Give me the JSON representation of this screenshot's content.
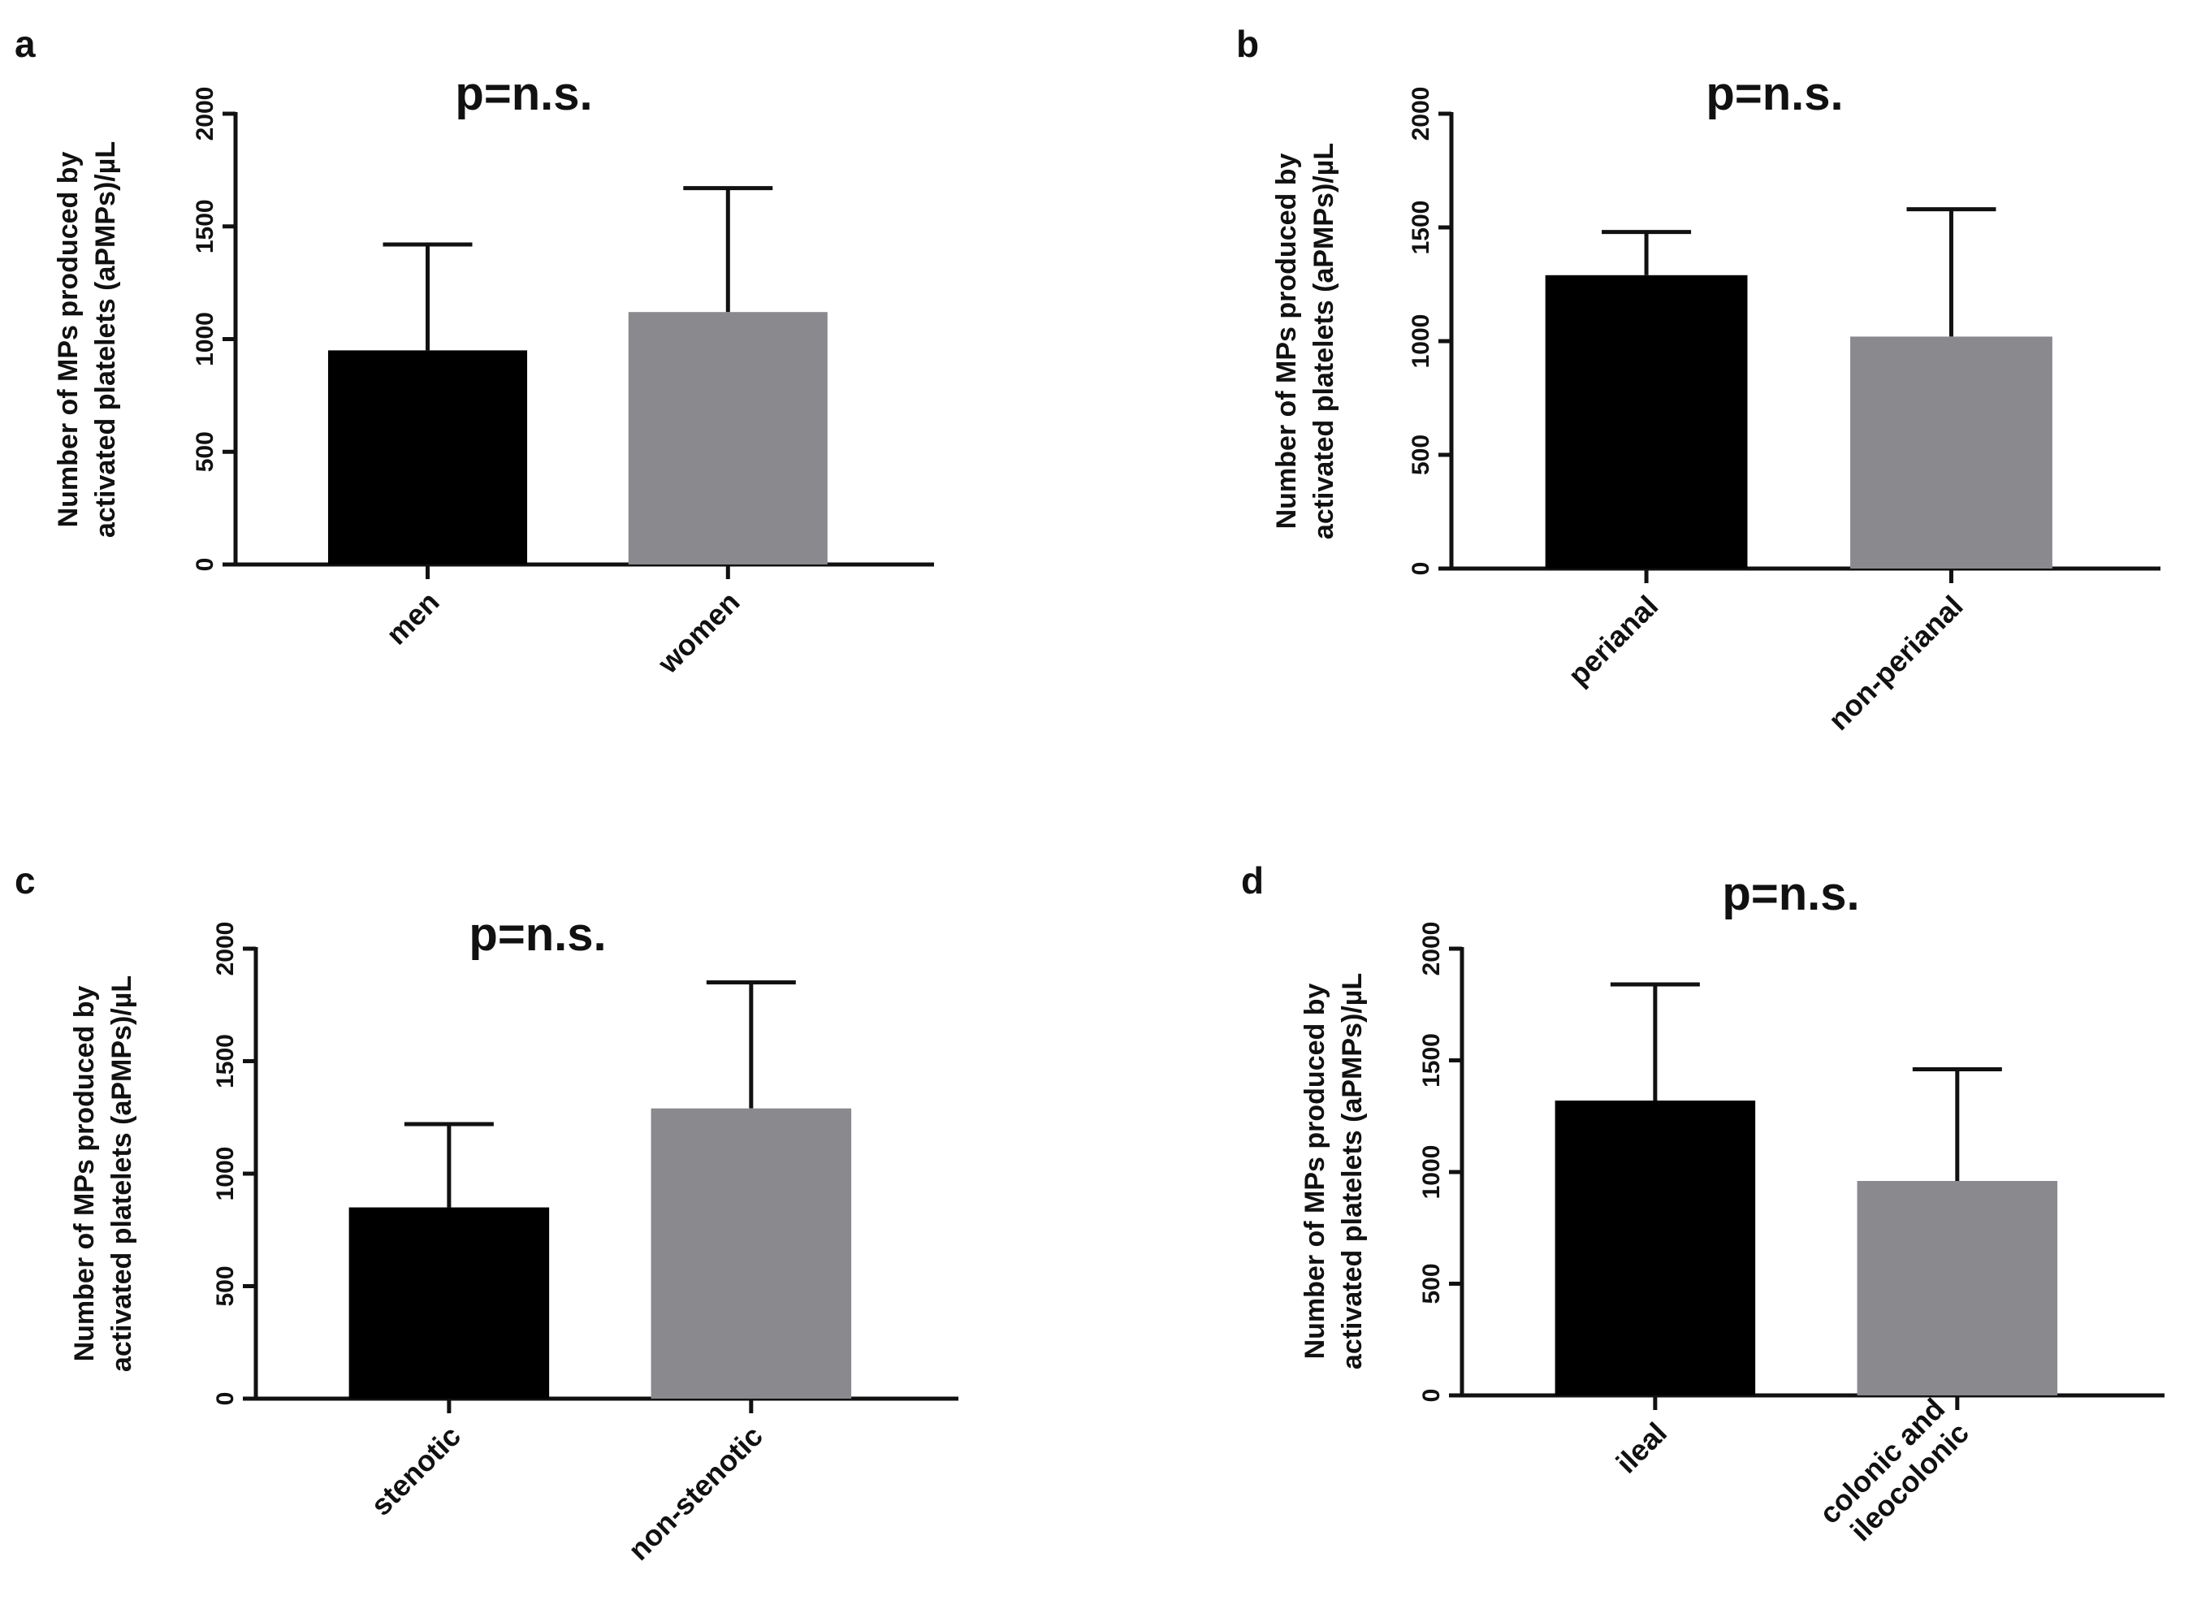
{
  "colors": {
    "series1": "#000000",
    "series2": "#8a8a8e",
    "axis": "#111111"
  },
  "chart_data": [
    {
      "type": "bar",
      "panel": "a",
      "title": "p=n.s.",
      "ylabel": [
        "Number of MPs produced by",
        "activated platelets (aPMPs)/µL"
      ],
      "ylim": [
        0,
        2000
      ],
      "yticks": [
        0,
        500,
        1000,
        1500,
        2000
      ],
      "categories": [
        [
          "men"
        ],
        [
          "women"
        ]
      ],
      "values": [
        950,
        1120
      ],
      "errors_upper": [
        1420,
        1670
      ]
    },
    {
      "type": "bar",
      "panel": "b",
      "title": "p=n.s.",
      "ylabel": [
        "Number of MPs produced by",
        "activated platelets (aPMPs)/µL"
      ],
      "ylim": [
        0,
        2000
      ],
      "yticks": [
        0,
        500,
        1000,
        1500,
        2000
      ],
      "categories": [
        [
          "perianal"
        ],
        [
          "non-perianal"
        ]
      ],
      "values": [
        1290,
        1020
      ],
      "errors_upper": [
        1480,
        1580
      ]
    },
    {
      "type": "bar",
      "panel": "c",
      "title": "p=n.s.",
      "ylabel": [
        "Number of MPs produced by",
        "activated platelets (aPMPs)/µL"
      ],
      "ylim": [
        0,
        2000
      ],
      "yticks": [
        0,
        500,
        1000,
        1500,
        2000
      ],
      "categories": [
        [
          "stenotic"
        ],
        [
          "non-stenotic"
        ]
      ],
      "values": [
        850,
        1290
      ],
      "errors_upper": [
        1220,
        1850
      ]
    },
    {
      "type": "bar",
      "panel": "d",
      "title": "p=n.s.",
      "ylabel": [
        "Number of MPs produced by",
        "activated platelets (aPMPs)/µL"
      ],
      "ylim": [
        0,
        2000
      ],
      "yticks": [
        0,
        500,
        1000,
        1500,
        2000
      ],
      "categories": [
        [
          "ileal"
        ],
        [
          "colonic and",
          "ileocolonic"
        ]
      ],
      "values": [
        1320,
        960
      ],
      "errors_upper": [
        1840,
        1460
      ]
    }
  ]
}
